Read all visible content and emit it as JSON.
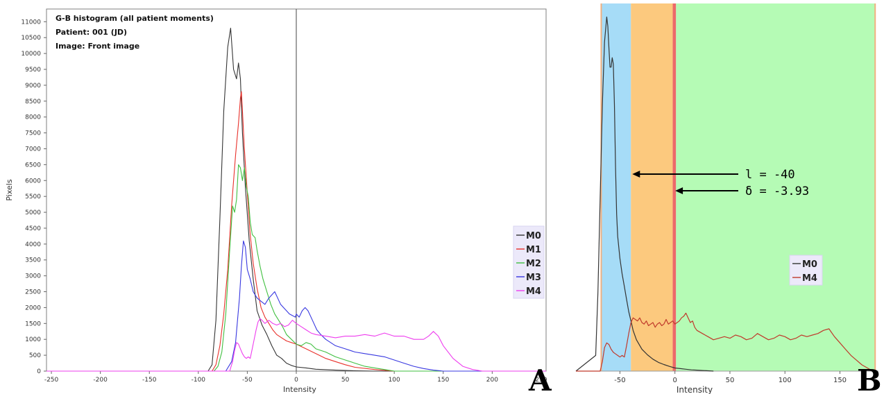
{
  "chart_data": [
    {
      "panel_letter": "A",
      "type": "line",
      "title": "G-B histogram (all patient moments)",
      "subtitle_lines": [
        "Patient: 001 (JD)",
        "Image: Front image"
      ],
      "xlabel": "Intensity",
      "ylabel": "Pixels",
      "xlim": [
        -255,
        255
      ],
      "ylim": [
        0,
        11400
      ],
      "xticks": [
        -250,
        -200,
        -150,
        -100,
        -50,
        0,
        50,
        100,
        150,
        200,
        250
      ],
      "xtick_labels": [
        "-250",
        "-200",
        "-150",
        "-100",
        "-50",
        "0",
        "50",
        "100",
        "150",
        "200",
        "250"
      ],
      "yticks": [
        0,
        500,
        1000,
        1500,
        2000,
        2500,
        3000,
        3500,
        4000,
        4500,
        5000,
        5500,
        6000,
        6500,
        7000,
        7500,
        8000,
        8500,
        9000,
        9500,
        10000,
        10500,
        11000
      ],
      "ytick_labels": [
        "0",
        "500",
        "1000",
        "1500",
        "2000",
        "2500",
        "3000",
        "3500",
        "4000",
        "4500",
        "5000",
        "5500",
        "6000",
        "6500",
        "7000",
        "7500",
        "8000",
        "8500",
        "9000",
        "9500",
        "10000",
        "10500",
        "11000"
      ],
      "vertical_marker_x": 0,
      "grid": false,
      "legend_position": "right",
      "series": [
        {
          "name": "M0",
          "color": "#333333",
          "x": [
            -255,
            -90,
            -86,
            -82,
            -78,
            -74,
            -70,
            -67,
            -64,
            -61,
            -59,
            -57,
            -55,
            -52,
            -48,
            -44,
            -40,
            -35,
            -30,
            -25,
            -20,
            -15,
            -10,
            -5,
            0,
            10,
            20,
            40,
            60,
            80,
            255
          ],
          "y": [
            0,
            0,
            200,
            1600,
            4800,
            8200,
            10200,
            10800,
            9500,
            9200,
            9700,
            9200,
            7500,
            5800,
            4100,
            2900,
            1900,
            1450,
            1150,
            800,
            500,
            400,
            250,
            180,
            130,
            100,
            60,
            30,
            10,
            0,
            0
          ]
        },
        {
          "name": "M1",
          "color": "#e8302a",
          "x": [
            -255,
            -86,
            -82,
            -78,
            -74,
            -70,
            -66,
            -62,
            -59,
            -57,
            -56,
            -55,
            -53,
            -50,
            -47,
            -44,
            -40,
            -36,
            -32,
            -28,
            -24,
            -20,
            -15,
            -10,
            -5,
            0,
            10,
            20,
            30,
            40,
            50,
            60,
            80,
            100,
            255
          ],
          "y": [
            0,
            0,
            200,
            800,
            1800,
            3200,
            5200,
            6800,
            7800,
            8600,
            8800,
            8200,
            7000,
            5600,
            4300,
            3400,
            2600,
            2000,
            1700,
            1500,
            1300,
            1150,
            1050,
            950,
            900,
            850,
            700,
            550,
            400,
            300,
            200,
            120,
            50,
            0,
            0
          ]
        },
        {
          "name": "M2",
          "color": "#3fbf3f",
          "x": [
            -255,
            -84,
            -80,
            -76,
            -72,
            -68,
            -65,
            -63,
            -61,
            -59,
            -57,
            -55,
            -53,
            -51,
            -49,
            -47,
            -45,
            -42,
            -40,
            -37,
            -34,
            -30,
            -26,
            -22,
            -18,
            -14,
            -10,
            -5,
            0,
            5,
            10,
            15,
            20,
            30,
            40,
            50,
            60,
            70,
            80,
            90,
            100,
            110,
            120,
            255
          ],
          "y": [
            0,
            0,
            150,
            600,
            1800,
            3800,
            5200,
            5000,
            5400,
            6500,
            6400,
            6000,
            6400,
            5800,
            5500,
            4700,
            4300,
            4200,
            3800,
            3300,
            2900,
            2500,
            2100,
            1800,
            1600,
            1400,
            1150,
            1000,
            850,
            800,
            900,
            850,
            700,
            600,
            450,
            350,
            250,
            150,
            100,
            50,
            0,
            0,
            0,
            0
          ]
        },
        {
          "name": "M3",
          "color": "#3737e0",
          "x": [
            -255,
            -72,
            -66,
            -62,
            -60,
            -58,
            -56,
            -54,
            -52,
            -50,
            -47,
            -44,
            -40,
            -36,
            -32,
            -28,
            -25,
            -22,
            -19,
            -16,
            -13,
            -10,
            -7,
            -4,
            -1,
            0,
            3,
            6,
            9,
            12,
            15,
            18,
            21,
            25,
            30,
            40,
            50,
            60,
            70,
            80,
            90,
            100,
            110,
            120,
            130,
            140,
            150,
            255
          ],
          "y": [
            0,
            0,
            300,
            900,
            1600,
            2300,
            3300,
            4100,
            3900,
            3200,
            2900,
            2500,
            2300,
            2200,
            2100,
            2300,
            2400,
            2500,
            2300,
            2100,
            2000,
            1900,
            1800,
            1750,
            1700,
            1800,
            1700,
            1900,
            2000,
            1900,
            1700,
            1500,
            1300,
            1150,
            1000,
            800,
            700,
            600,
            550,
            500,
            450,
            350,
            250,
            150,
            80,
            30,
            0,
            0
          ]
        },
        {
          "name": "M4",
          "color": "#ee3cee",
          "x": [
            -255,
            -68,
            -65,
            -63,
            -61,
            -59,
            -57,
            -55,
            -53,
            -51,
            -49,
            -47,
            -45,
            -43,
            -41,
            -39,
            -37,
            -35,
            -32,
            -28,
            -24,
            -20,
            -16,
            -12,
            -8,
            -4,
            0,
            5,
            10,
            15,
            20,
            30,
            40,
            50,
            60,
            70,
            80,
            90,
            100,
            110,
            120,
            130,
            135,
            140,
            145,
            150,
            160,
            170,
            180,
            190,
            255
          ],
          "y": [
            0,
            0,
            300,
            650,
            900,
            850,
            700,
            550,
            450,
            400,
            450,
            400,
            700,
            1000,
            1300,
            1550,
            1650,
            1600,
            1500,
            1600,
            1500,
            1450,
            1500,
            1400,
            1450,
            1600,
            1500,
            1400,
            1300,
            1200,
            1150,
            1100,
            1050,
            1100,
            1100,
            1150,
            1100,
            1200,
            1100,
            1100,
            1000,
            1000,
            1100,
            1250,
            1100,
            800,
            400,
            150,
            50,
            0,
            0
          ]
        }
      ]
    },
    {
      "panel_letter": "B",
      "type": "line",
      "xlabel": "Intensity",
      "xlim": [
        -90,
        185
      ],
      "ylim": [
        0,
        11400
      ],
      "xticks": [
        -50,
        0,
        50,
        100,
        150
      ],
      "xtick_labels": [
        "-50",
        "0",
        "50",
        "100",
        "150"
      ],
      "regions": [
        {
          "from": -67,
          "to": -40,
          "color": "#a6dcf7"
        },
        {
          "from": -40,
          "to": -2,
          "color": "#fcc97e"
        },
        {
          "from": -2,
          "to": 1,
          "color": "#ec6a6a"
        },
        {
          "from": 1,
          "to": 182,
          "color": "#b5fbb5"
        }
      ],
      "region_edge_color": "#f0b080",
      "annotations": [
        {
          "text": "l = -40",
          "x": -40
        },
        {
          "text": "δ = -3.93",
          "x": -1
        }
      ],
      "legend_position": "right",
      "series": [
        {
          "name": "M0",
          "color": "#333333",
          "x": [
            -90,
            -72,
            -70,
            -68,
            -66,
            -64,
            -62,
            -61,
            -60,
            -59,
            -58,
            -57,
            -56,
            -55,
            -54,
            -53,
            -52,
            -50,
            -48,
            -46,
            -44,
            -42,
            -40,
            -38,
            -35,
            -30,
            -25,
            -20,
            -15,
            -10,
            -5,
            0,
            5,
            10,
            15,
            20,
            25,
            30,
            35
          ],
          "y": [
            0,
            500,
            2500,
            5500,
            8500,
            10500,
            11300,
            11000,
            10300,
            9700,
            9700,
            10000,
            9800,
            8500,
            6500,
            5000,
            4300,
            3600,
            3100,
            2700,
            2300,
            1900,
            1600,
            1300,
            1000,
            700,
            520,
            380,
            280,
            210,
            150,
            100,
            80,
            60,
            40,
            30,
            20,
            10,
            0
          ]
        },
        {
          "name": "M4",
          "color": "#c0392b",
          "x": [
            -90,
            -68,
            -66,
            -64,
            -62,
            -60,
            -58,
            -56,
            -54,
            -52,
            -50,
            -48,
            -46,
            -44,
            -42,
            -40,
            -38,
            -36,
            -34,
            -32,
            -30,
            -28,
            -26,
            -24,
            -22,
            -20,
            -18,
            -16,
            -14,
            -12,
            -10,
            -8,
            -6,
            -4,
            -2,
            0,
            2,
            4,
            6,
            8,
            10,
            12,
            14,
            16,
            18,
            20,
            25,
            30,
            35,
            40,
            45,
            50,
            55,
            60,
            65,
            70,
            75,
            80,
            85,
            90,
            95,
            100,
            105,
            110,
            115,
            120,
            125,
            130,
            135,
            140,
            142,
            145,
            150,
            155,
            160,
            165,
            170,
            175,
            180
          ],
          "y": [
            0,
            0,
            300,
            750,
            900,
            850,
            700,
            600,
            550,
            500,
            450,
            500,
            450,
            800,
            1200,
            1550,
            1700,
            1650,
            1600,
            1700,
            1550,
            1500,
            1600,
            1450,
            1500,
            1550,
            1400,
            1500,
            1550,
            1450,
            1500,
            1650,
            1500,
            1550,
            1600,
            1500,
            1550,
            1600,
            1700,
            1750,
            1850,
            1700,
            1550,
            1600,
            1400,
            1300,
            1200,
            1100,
            1000,
            1050,
            1100,
            1050,
            1150,
            1100,
            1000,
            1050,
            1200,
            1100,
            1000,
            1050,
            1150,
            1100,
            1000,
            1050,
            1150,
            1100,
            1150,
            1200,
            1300,
            1350,
            1250,
            1100,
            900,
            700,
            500,
            350,
            200,
            100,
            0
          ]
        }
      ]
    }
  ]
}
